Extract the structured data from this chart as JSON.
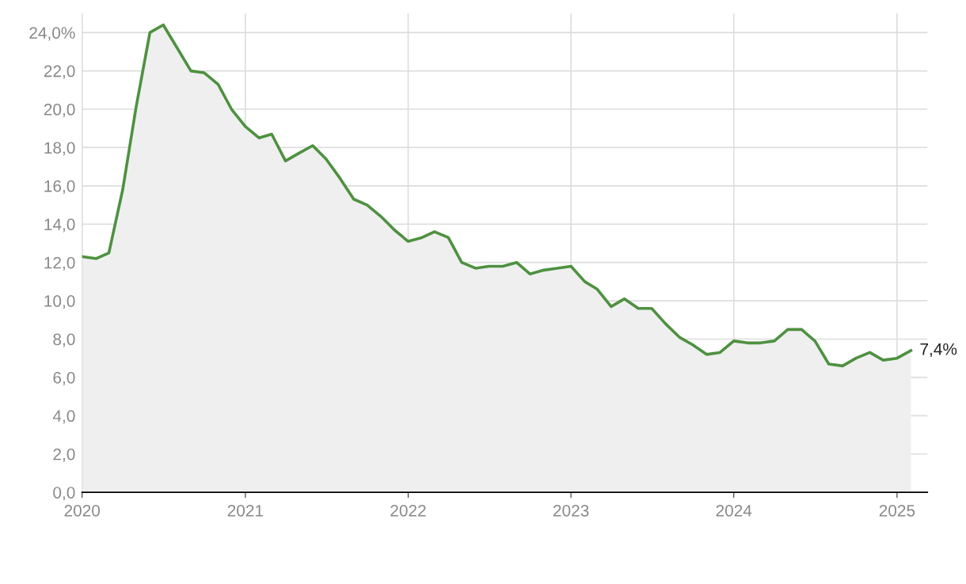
{
  "chart_data": {
    "type": "area",
    "x": [
      "2020-01",
      "2020-02",
      "2020-03",
      "2020-04",
      "2020-05",
      "2020-06",
      "2020-07",
      "2020-08",
      "2020-09",
      "2020-10",
      "2020-11",
      "2020-12",
      "2021-01",
      "2021-02",
      "2021-03",
      "2021-04",
      "2021-05",
      "2021-06",
      "2021-07",
      "2021-08",
      "2021-09",
      "2021-10",
      "2021-11",
      "2021-12",
      "2022-01",
      "2022-02",
      "2022-03",
      "2022-04",
      "2022-05",
      "2022-06",
      "2022-07",
      "2022-08",
      "2022-09",
      "2022-10",
      "2022-11",
      "2022-12",
      "2023-01",
      "2023-02",
      "2023-03",
      "2023-04",
      "2023-05",
      "2023-06",
      "2023-07",
      "2023-08",
      "2023-09",
      "2023-10",
      "2023-11",
      "2023-12",
      "2024-01",
      "2024-02",
      "2024-03",
      "2024-04",
      "2024-05",
      "2024-06",
      "2024-07",
      "2024-08",
      "2024-09",
      "2024-10",
      "2024-11",
      "2024-12",
      "2025-01",
      "2025-02"
    ],
    "series": [
      {
        "color": "#4e9140",
        "values": [
          12.3,
          12.2,
          12.5,
          15.8,
          20.1,
          24.0,
          24.4,
          23.2,
          22.0,
          21.9,
          21.3,
          20.0,
          19.1,
          18.5,
          18.7,
          17.3,
          17.7,
          18.1,
          17.4,
          16.4,
          15.3,
          15.0,
          14.4,
          13.7,
          13.1,
          13.3,
          13.6,
          13.3,
          12.0,
          11.7,
          11.8,
          11.8,
          12.0,
          11.4,
          11.6,
          11.7,
          11.8,
          11.0,
          10.6,
          9.7,
          10.1,
          9.6,
          9.6,
          8.8,
          8.1,
          7.7,
          7.2,
          7.3,
          7.9,
          7.8,
          7.8,
          7.9,
          8.5,
          8.5,
          7.9,
          6.7,
          6.6,
          7.0,
          7.3,
          6.9,
          7.0,
          7.4
        ]
      }
    ],
    "annotations": [
      {
        "text": "7,4%",
        "x": "2025-02",
        "y": 7.4
      }
    ],
    "xlim": [
      "2020-01",
      "2025-03-10"
    ],
    "xticks": [
      "2020",
      "2021",
      "2022",
      "2023",
      "2024",
      "2025"
    ],
    "ylim": [
      0,
      25
    ],
    "yticks": [
      {
        "value": 0,
        "label": "0,0"
      },
      {
        "value": 2,
        "label": "2,0"
      },
      {
        "value": 4,
        "label": "4,0"
      },
      {
        "value": 6,
        "label": "6,0"
      },
      {
        "value": 8,
        "label": "8,0"
      },
      {
        "value": 10,
        "label": "10,0"
      },
      {
        "value": 12,
        "label": "12,0"
      },
      {
        "value": 14,
        "label": "14,0"
      },
      {
        "value": 16,
        "label": "16,0"
      },
      {
        "value": 18,
        "label": "18,0"
      },
      {
        "value": 20,
        "label": "20,0"
      },
      {
        "value": 22,
        "label": "22,0"
      },
      {
        "value": 24,
        "label": "24,0%"
      }
    ],
    "grid": true,
    "legend": false
  }
}
